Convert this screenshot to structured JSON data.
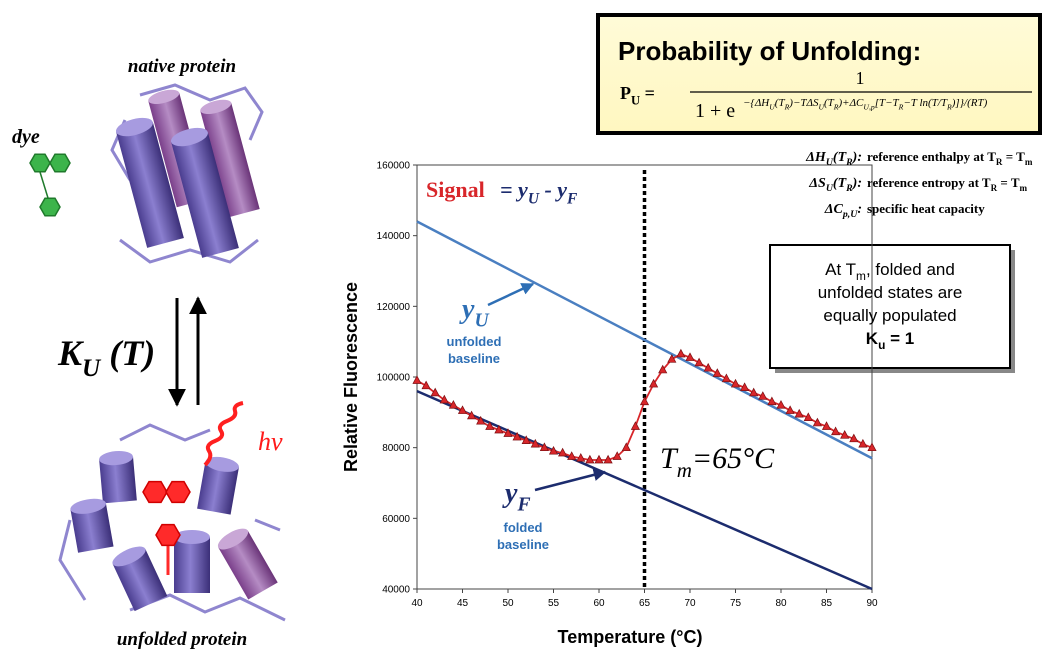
{
  "chart_data": {
    "type": "line",
    "xlabel": "Temperature (°C)",
    "ylabel": "Relative Fluorescence",
    "xlim": [
      40,
      90
    ],
    "ylim": [
      40000,
      160000
    ],
    "xticks": [
      40,
      45,
      50,
      55,
      60,
      65,
      70,
      75,
      80,
      85,
      90
    ],
    "yticks": [
      40000,
      60000,
      80000,
      100000,
      120000,
      140000,
      160000
    ],
    "vline": 65,
    "series": [
      {
        "color": "#4a7fc1",
        "x": [
          40,
          90
        ],
        "values": [
          144000,
          77000
        ]
      },
      {
        "color": "#1c2c6e",
        "x": [
          40,
          90
        ],
        "values": [
          96000,
          40000
        ]
      },
      {
        "color": "#d8262a",
        "marker": "triangle",
        "x": [
          40,
          41,
          42,
          43,
          44,
          45,
          46,
          47,
          48,
          49,
          50,
          51,
          52,
          53,
          54,
          55,
          56,
          57,
          58,
          59,
          60,
          61,
          62,
          63,
          64,
          65,
          66,
          67,
          68,
          69,
          70,
          71,
          72,
          73,
          74,
          75,
          76,
          77,
          78,
          79,
          80,
          81,
          82,
          83,
          84,
          85,
          86,
          87,
          88,
          89,
          90
        ],
        "values": [
          99000,
          97500,
          95500,
          93500,
          92000,
          90500,
          89000,
          87500,
          86000,
          85000,
          84000,
          83000,
          82000,
          81000,
          80000,
          79000,
          78500,
          77500,
          77000,
          76500,
          76500,
          76500,
          77500,
          80000,
          86000,
          93000,
          98000,
          102000,
          105000,
          106500,
          105500,
          104000,
          102500,
          101000,
          99500,
          98000,
          97000,
          95500,
          94500,
          93000,
          92000,
          90500,
          89500,
          88500,
          87000,
          86000,
          84500,
          83500,
          82500,
          81000,
          80000
        ]
      }
    ],
    "annotations": {
      "signal_label": "Signal",
      "signal_formula": [
        "= ",
        "y",
        {
          "sub": "U"
        },
        " - ",
        "y",
        {
          "sub": "F"
        }
      ],
      "yu_label": [
        "y",
        {
          "sub": "U"
        }
      ],
      "unfolded_baseline": [
        "unfolded",
        "baseline"
      ],
      "yf_label": [
        "y",
        {
          "sub": "F"
        }
      ],
      "folded_baseline": [
        "folded",
        "baseline"
      ],
      "tm_label": [
        "T",
        {
          "sub": "m"
        },
        "=65°C"
      ]
    }
  },
  "formula": {
    "title": "Probability of Unfolding:",
    "lhs": [
      "P",
      {
        "sub": "U"
      },
      " ="
    ],
    "numerator": "1",
    "denominator": "1 + e",
    "exponent": [
      "−{ΔH",
      {
        "sub": "U"
      },
      "(T",
      {
        "sub": "R"
      },
      ")−TΔS",
      {
        "sub": "U"
      },
      "(T",
      {
        "sub": "R"
      },
      ")+ΔC",
      {
        "sub": "U,p"
      },
      "[T−T",
      {
        "sub": "R"
      },
      "−T ln(T/T",
      {
        "sub": "R"
      },
      ")]}/(RT)"
    ]
  },
  "definitions": [
    {
      "term": [
        "ΔH",
        {
          "sub": "U"
        },
        "(T",
        {
          "sub": "R"
        },
        "):"
      ],
      "desc": [
        "reference enthalpy at T",
        {
          "sub": "R"
        },
        " = T",
        {
          "sub": "m"
        }
      ]
    },
    {
      "term": [
        "ΔS",
        {
          "sub": "U"
        },
        "(T",
        {
          "sub": "R"
        },
        "):"
      ],
      "desc": [
        "reference entropy at T",
        {
          "sub": "R"
        },
        " = T",
        {
          "sub": "m"
        }
      ]
    },
    {
      "term": [
        "ΔC",
        {
          "sub": "p,U"
        },
        ":"
      ],
      "desc": [
        "specific heat capacity"
      ]
    }
  ],
  "note": {
    "lines": [
      [
        "At T",
        {
          "sub": "m"
        },
        ", folded and"
      ],
      [
        "unfolded states are"
      ],
      [
        "equally populated"
      ],
      [
        "K",
        {
          "sub": "u"
        },
        " = 1"
      ]
    ]
  },
  "diagram": {
    "native": "native protein",
    "dye": "dye",
    "equilibrium": [
      "K",
      {
        "sub": "U"
      },
      " (T)"
    ],
    "emission": "hν",
    "unfolded": "unfolded protein"
  }
}
